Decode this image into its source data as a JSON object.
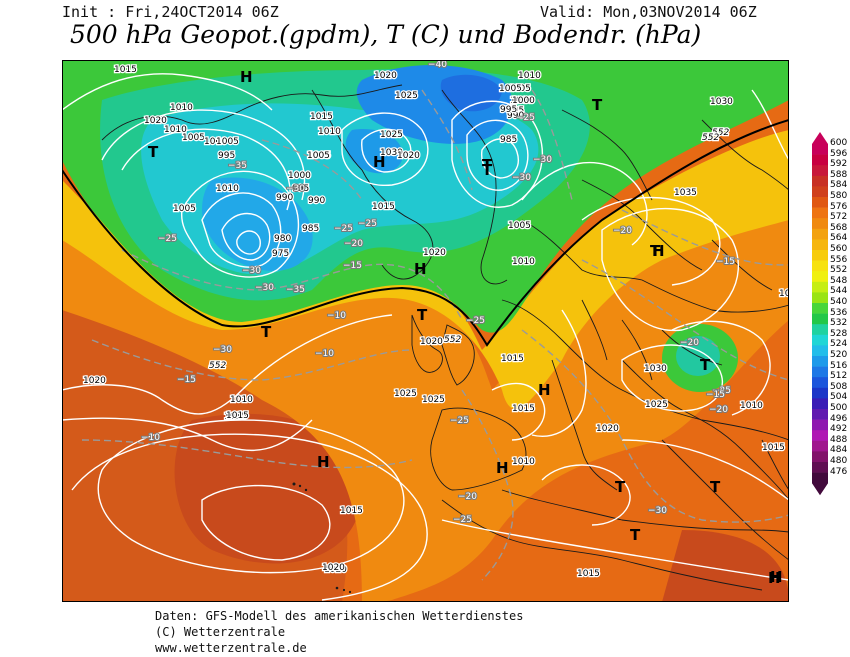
{
  "header": {
    "init_text": "Init : Fri,24OCT2014 06Z",
    "valid_text": "Valid: Mon,03NOV2014 06Z",
    "title": "500 hPa Geopot.(gpdm), T (C) und Bodendr. (hPa)"
  },
  "legend": {
    "values": [
      "600",
      "596",
      "592",
      "588",
      "584",
      "580",
      "576",
      "572",
      "568",
      "564",
      "560",
      "556",
      "552",
      "548",
      "544",
      "540",
      "536",
      "532",
      "528",
      "524",
      "520",
      "516",
      "512",
      "508",
      "504",
      "500",
      "496",
      "492",
      "488",
      "484",
      "480",
      "476"
    ],
    "colors": [
      "#c8005a",
      "#c80040",
      "#c8183a",
      "#c83024",
      "#d0401c",
      "#e05812",
      "#ee7412",
      "#f08a10",
      "#f3a210",
      "#f6b60e",
      "#f7cc0a",
      "#f7e210",
      "#f0f010",
      "#c6ee14",
      "#9ae414",
      "#48d63a",
      "#22c848",
      "#20d2a0",
      "#20d6d6",
      "#22bdea",
      "#1e9aea",
      "#1e78e6",
      "#1c56dc",
      "#1c36c8",
      "#3a1cb6",
      "#601ab0",
      "#8e18b0",
      "#b018b4",
      "#a0168e",
      "#82126a",
      "#600e52",
      "#420a3c"
    ]
  },
  "map": {
    "pressure_labels": [
      {
        "text": "1015"
      },
      {
        "text": "1010"
      },
      {
        "text": "1020"
      },
      {
        "text": "1010"
      },
      {
        "text": "1005"
      },
      {
        "text": "1000"
      },
      {
        "text": "995"
      },
      {
        "text": "1010"
      },
      {
        "text": "1005"
      },
      {
        "text": "1015"
      },
      {
        "text": "1010"
      },
      {
        "text": "1005"
      },
      {
        "text": "1025"
      },
      {
        "text": "1030"
      },
      {
        "text": "990"
      },
      {
        "text": "985"
      },
      {
        "text": "1000"
      },
      {
        "text": "995"
      },
      {
        "text": "990"
      },
      {
        "text": "1005"
      },
      {
        "text": "985"
      },
      {
        "text": "980"
      },
      {
        "text": "975"
      },
      {
        "text": "1005"
      },
      {
        "text": "1015"
      },
      {
        "text": "1020"
      },
      {
        "text": "1010"
      },
      {
        "text": "995"
      },
      {
        "text": "1000"
      },
      {
        "text": "1005"
      },
      {
        "text": "1030"
      },
      {
        "text": "1035"
      },
      {
        "text": "990"
      },
      {
        "text": "995"
      },
      {
        "text": "1000"
      },
      {
        "text": "1005"
      },
      {
        "text": "1010"
      },
      {
        "text": "1015"
      },
      {
        "text": "1020"
      },
      {
        "text": "1025"
      },
      {
        "text": "1020"
      },
      {
        "text": "1025"
      },
      {
        "text": "1020"
      },
      {
        "text": "1015"
      },
      {
        "text": "1015"
      },
      {
        "text": "1010"
      },
      {
        "text": "1015"
      },
      {
        "text": "1020"
      },
      {
        "text": "1030"
      },
      {
        "text": "1025"
      },
      {
        "text": "1020"
      },
      {
        "text": "1010"
      },
      {
        "text": "1015"
      },
      {
        "text": "1015"
      },
      {
        "text": "1010"
      },
      {
        "text": "1005"
      },
      {
        "text": "1025"
      },
      {
        "text": "1020"
      },
      {
        "text": "1015"
      },
      {
        "text": "1015"
      },
      {
        "text": "1020"
      }
    ],
    "temp_labels": [
      {
        "text": "-40"
      },
      {
        "text": "-35"
      },
      {
        "text": "-30"
      },
      {
        "text": "-30"
      },
      {
        "text": "-30"
      },
      {
        "text": "-25"
      },
      {
        "text": "-25"
      },
      {
        "text": "-30"
      },
      {
        "text": "-25"
      },
      {
        "text": "-20"
      },
      {
        "text": "-15"
      },
      {
        "text": "-10"
      },
      {
        "text": "-30"
      },
      {
        "text": "-15"
      },
      {
        "text": "-10"
      },
      {
        "text": "-10"
      },
      {
        "text": "-25"
      },
      {
        "text": "-25"
      },
      {
        "text": "-20"
      },
      {
        "text": "-15"
      },
      {
        "text": "-20"
      },
      {
        "text": "-25"
      },
      {
        "text": "-30"
      },
      {
        "text": "-25"
      },
      {
        "text": "-20"
      },
      {
        "text": "-15"
      },
      {
        "text": "-20"
      },
      {
        "text": "-25"
      },
      {
        "text": "-30"
      },
      {
        "text": "-35"
      }
    ],
    "pressure_centers": [
      {
        "text": "H"
      },
      {
        "text": "T"
      },
      {
        "text": "H"
      },
      {
        "text": "T"
      },
      {
        "text": "T"
      },
      {
        "text": "T"
      },
      {
        "text": "H"
      },
      {
        "text": "T"
      },
      {
        "text": "T"
      },
      {
        "text": "H"
      },
      {
        "text": "H"
      },
      {
        "text": "H"
      },
      {
        "text": "T"
      },
      {
        "text": "T"
      },
      {
        "text": "T"
      },
      {
        "text": "H"
      },
      {
        "text": "T"
      },
      {
        "text": "H"
      },
      {
        "text": "T"
      },
      {
        "text": "H"
      }
    ],
    "geopot_labels": [
      {
        "text": "552"
      },
      {
        "text": "552"
      },
      {
        "text": "552"
      },
      {
        "text": "552"
      }
    ]
  },
  "footer": {
    "line1": "Daten: GFS-Modell des amerikanischen Wetterdienstes",
    "line2": "(C) Wetterzentrale",
    "line3": "www.wetterzentrale.de"
  }
}
